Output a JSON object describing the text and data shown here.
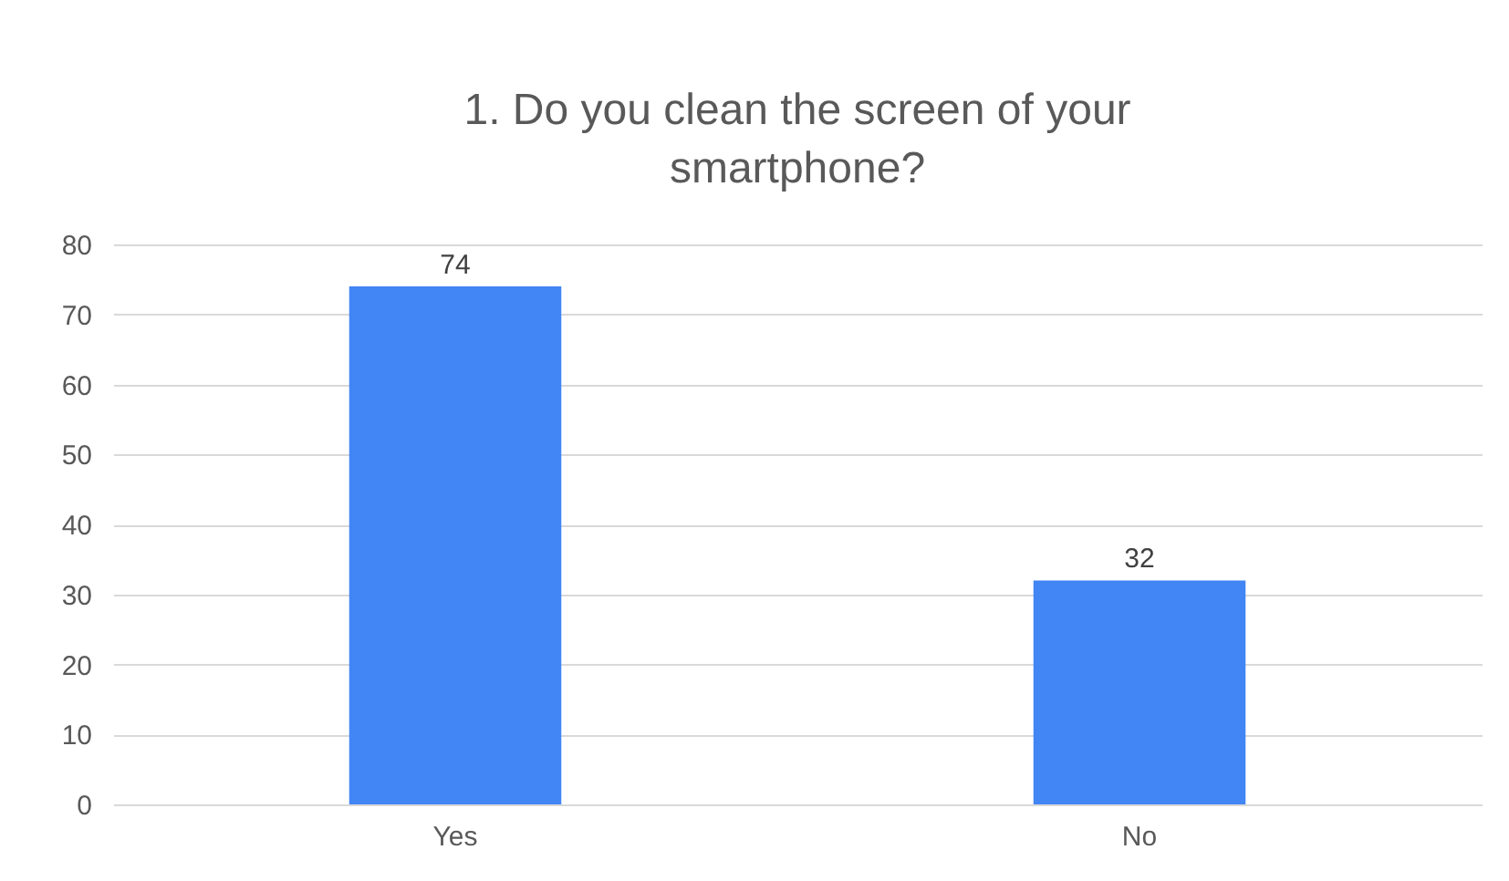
{
  "chart_data": {
    "type": "bar",
    "title": "1. Do you clean the screen of your smartphone?",
    "categories": [
      "Yes",
      "No"
    ],
    "series": [
      {
        "color": "#4285f4",
        "values": [
          74,
          32
        ]
      }
    ],
    "ylim": [
      0,
      80
    ],
    "yticks": [
      0,
      10,
      20,
      30,
      40,
      50,
      60,
      70,
      80
    ],
    "grid": "y",
    "data_labels": true
  }
}
